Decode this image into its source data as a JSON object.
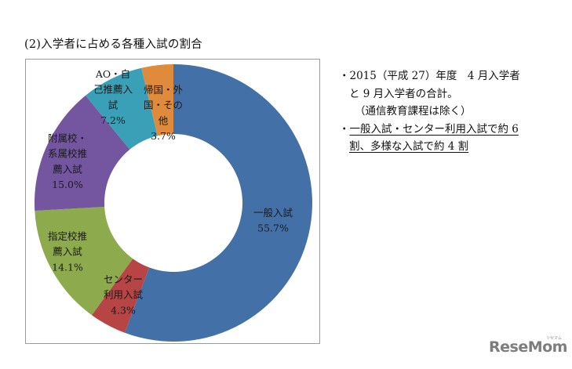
{
  "heading": "(2)入学者に占める各種入試の割合",
  "chart_data": {
    "type": "pie",
    "subtype": "donut",
    "title": "(2)入学者に占める各種入試の割合",
    "start_angle": "12 o'clock",
    "direction": "clockwise",
    "categories": [
      "一般入試",
      "センター利用入試",
      "指定校推薦入試",
      "附属校・系属校推薦入試",
      "AO・自己推薦入試",
      "帰国・外国・その他"
    ],
    "values": [
      55.7,
      4.3,
      14.1,
      15.0,
      7.2,
      3.7
    ],
    "unit": "%",
    "colors": [
      "#4470a8",
      "#b84545",
      "#8daa4c",
      "#7455a0",
      "#3aa0b8",
      "#e08a3c"
    ],
    "labels": [
      {
        "lines": [
          "一般入試",
          "55.7%"
        ]
      },
      {
        "lines": [
          "センター",
          "利用入試",
          "4.3%"
        ]
      },
      {
        "lines": [
          "指定校推",
          "薦入試",
          "14.1%"
        ]
      },
      {
        "lines": [
          "附属校・",
          "系属校推",
          "薦入試",
          "15.0%"
        ]
      },
      {
        "lines": [
          "AO・自",
          "己推薦入",
          "試",
          "7.2%"
        ]
      },
      {
        "lines": [
          "帰国・外",
          "国・その",
          "他",
          "3.7%"
        ]
      }
    ],
    "legend": "none (data labels on slices)"
  },
  "notes": [
    {
      "text": "・2015（平成 27）年度　4 月入学者",
      "underline": false
    },
    {
      "text": "と 9 月入学者の合計。",
      "underline": false
    },
    {
      "text": "（通信教育課程は除く）",
      "underline": false
    },
    {
      "text": "・一般入試・センター利用入試で約 6",
      "underline": true
    },
    {
      "text": "割、多様な入試で約 4 割",
      "underline": true
    }
  ],
  "logo": {
    "text": "ReseMom",
    "sub": "リセマム"
  }
}
